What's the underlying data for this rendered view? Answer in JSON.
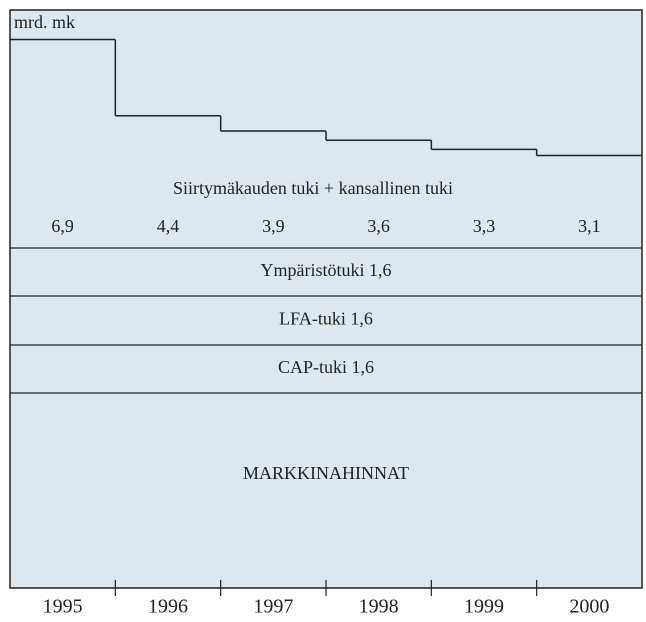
{
  "chart_data": {
    "type": "step",
    "y_unit_label": "mrd. mk",
    "series_label": "Siirtymäkauden tuki + kansallinen tuki",
    "categories": [
      "1995",
      "1996",
      "1997",
      "1998",
      "1999",
      "2000"
    ],
    "values": [
      6.9,
      4.4,
      3.9,
      3.6,
      3.3,
      3.1
    ],
    "value_labels": [
      "6,9",
      "4,4",
      "3,9",
      "3,6",
      "3,3",
      "3,1"
    ],
    "bands": [
      "Ympäristötuki  1,6",
      "LFA-tuki  1,6",
      "CAP-tuki  1,6",
      "MARKKINAHINNAT"
    ],
    "color": "#222222"
  }
}
